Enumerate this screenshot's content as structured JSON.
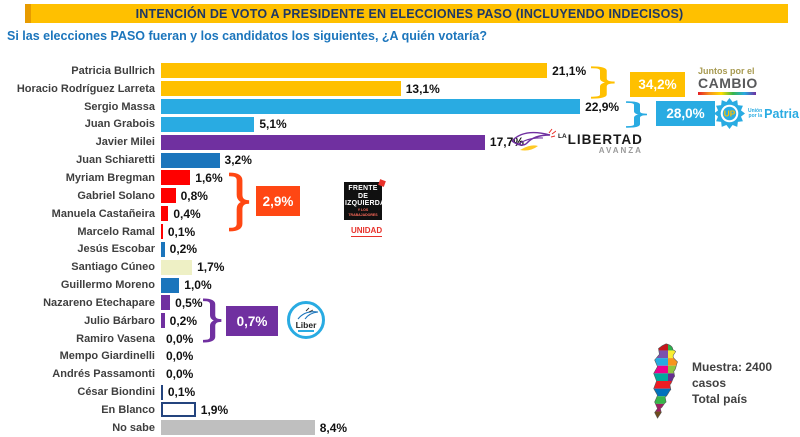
{
  "header": {
    "title": "INTENCIÓN DE VOTO A PRESIDENTE EN ELECCIONES PASO (INCLUYENDO INDECISOS)",
    "subtitle": "Si las elecciones PASO fueran y los candidatos los siguientes, ¿A quién votaría?",
    "banner_color": "#FFC000",
    "title_color": "#1F3864",
    "subtitle_color": "#1B75BC"
  },
  "chart_data": {
    "type": "bar",
    "orientation": "horizontal",
    "unit": "%",
    "xlim": [
      0,
      24
    ],
    "grid": false,
    "legend": false,
    "categories": [
      "Patricia Bullrich",
      "Horacio Rodríguez Larreta",
      "Sergio Massa",
      "Juan Grabois",
      "Javier Milei",
      "Juan Schiaretti",
      "Myriam Bregman",
      "Gabriel Solano",
      "Manuela Castañeira",
      "Marcelo Ramal",
      "Jesús Escobar",
      "Santiago Cúneo",
      "Guillermo Moreno",
      "Nazareno Etechapare",
      "Julio Bárbaro",
      "Ramiro Vasena",
      "Mempo Giardinelli",
      "Andrés Passamonti",
      "César Biondini",
      "En Blanco",
      "No sabe"
    ],
    "values": [
      21.1,
      13.1,
      22.9,
      5.1,
      17.7,
      3.2,
      1.6,
      0.8,
      0.4,
      0.1,
      0.2,
      1.7,
      1.0,
      0.5,
      0.2,
      0.0,
      0.0,
      0.0,
      0.1,
      1.9,
      8.4
    ],
    "value_labels": [
      "21,1%",
      "13,1%",
      "22,9%",
      "5,1%",
      "17,7%",
      "3,2%",
      "1,6%",
      "0,8%",
      "0,4%",
      "0,1%",
      "0,2%",
      "1,7%",
      "1,0%",
      "0,5%",
      "0,2%",
      "0,0%",
      "0,0%",
      "0,0%",
      "0,1%",
      "1,9%",
      "8,4%"
    ],
    "bar_colors": [
      "#FFC000",
      "#FFC000",
      "#29ABE2",
      "#29ABE2",
      "#7030A0",
      "#1B75BC",
      "#FF0000",
      "#FF0000",
      "#FF0000",
      "#FF0000",
      "#1B75BC",
      "#EEF0C5",
      "#1B75BC",
      "#7030A0",
      "#7030A0",
      "#7030A0",
      "#BFBFBF",
      "#BFBFBF",
      "#24447E",
      "#FFFFFF",
      "#BFBFBF"
    ],
    "outline_color": "#24447E",
    "groups": [
      {
        "name": "Juntos por el Cambio",
        "label": "34,2%",
        "color": "#FFC000",
        "members": [
          "Patricia Bullrich",
          "Horacio Rodríguez Larreta"
        ]
      },
      {
        "name": "Unión por la Patria",
        "label": "28,0%",
        "color": "#29ABE2",
        "members": [
          "Sergio Massa",
          "Juan Grabois"
        ]
      },
      {
        "name": "Frente de Izquierda Unidad",
        "label": "2,9%",
        "color": "#FF4713",
        "members": [
          "Myriam Bregman",
          "Gabriel Solano",
          "Manuela Castañeira",
          "Marcelo Ramal"
        ]
      },
      {
        "name": "Liber.ar",
        "label": "0,7%",
        "color": "#7030A0",
        "members": [
          "Nazareno Etechapare",
          "Julio Bárbaro",
          "Ramiro Vasena"
        ]
      }
    ]
  },
  "logos": {
    "jxc": {
      "top": "Juntos por el",
      "main": "CAMBIO"
    },
    "up": {
      "small1": "Unión",
      "small2": "por la",
      "main": "Patria",
      "badge": "UP"
    },
    "lla": {
      "la": "LA",
      "main": "LIBERTAD",
      "sub": "AVANZA"
    },
    "fit": {
      "line1": "FRENTE DE",
      "line2": "IZQUIERDA",
      "line3": "Y LOS TRABAJADORES",
      "unidad": "UNIDAD"
    },
    "liber": {
      "main": "Liber"
    }
  },
  "footnote": {
    "line1": "Muestra: 2400 casos",
    "line2": "Total país"
  }
}
